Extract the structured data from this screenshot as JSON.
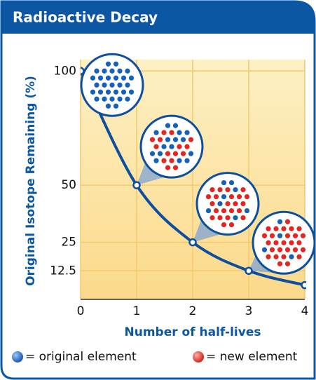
{
  "chart_data": {
    "type": "line",
    "title": "Radioactive Decay",
    "x_label": "Number of half-lives",
    "y_label": "Original Isotope Remaining (%)",
    "x": [
      0,
      1,
      2,
      3,
      4
    ],
    "values": [
      100,
      50,
      25,
      12.5,
      6.25
    ],
    "color": "#0d4f9e",
    "xlim": [
      0,
      4
    ],
    "ylim": [
      0,
      105
    ],
    "xticks": [
      0,
      1,
      2,
      3,
      4
    ],
    "yticks": [
      12.5,
      25,
      50,
      100
    ],
    "grid": true,
    "legend": [
      {
        "label": "= original element",
        "color": "#1560b8"
      },
      {
        "label": "= new element",
        "color": "#e3261f"
      }
    ]
  }
}
